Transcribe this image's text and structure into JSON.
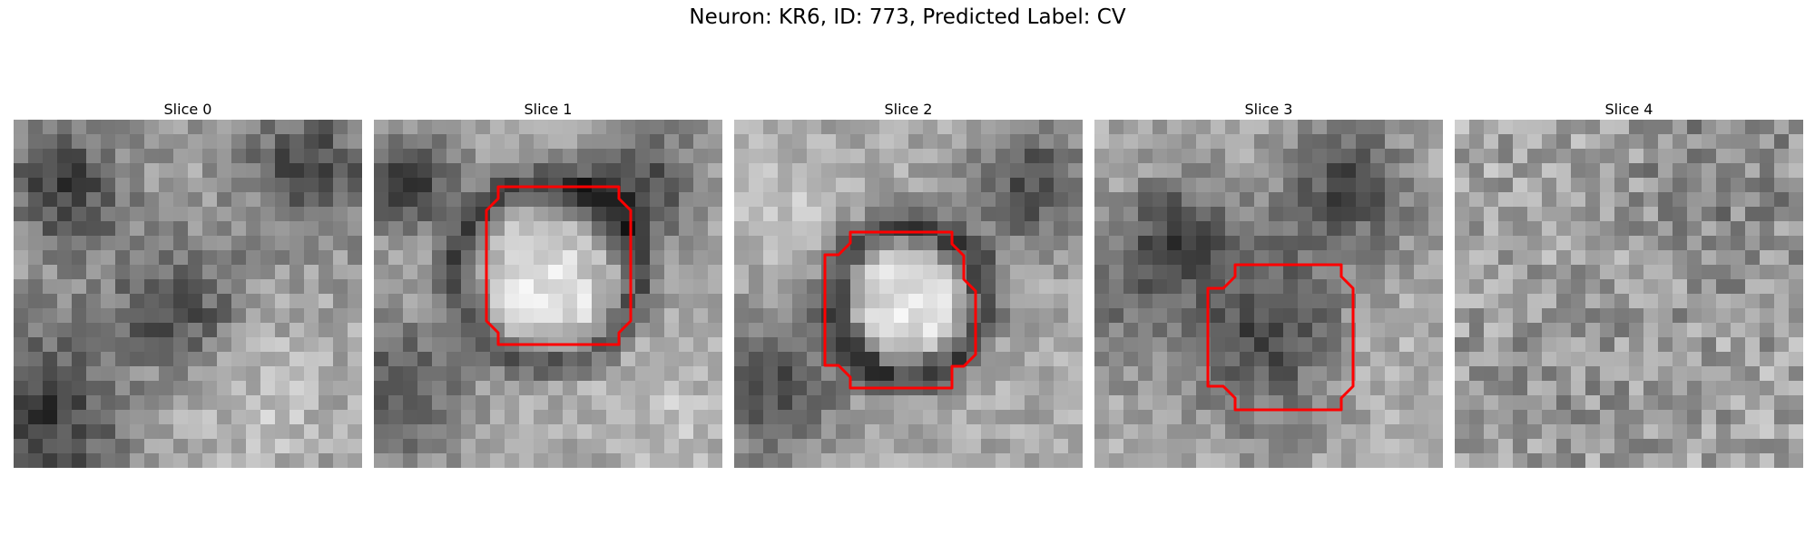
{
  "figure": {
    "title": "Neuron: KR6, ID: 773, Predicted Label: CV"
  },
  "panels": [
    {
      "title": "Slice 0",
      "has_contour": false
    },
    {
      "title": "Slice 1",
      "has_contour": true
    },
    {
      "title": "Slice 2",
      "has_contour": true
    },
    {
      "title": "Slice 3",
      "has_contour": true
    },
    {
      "title": "Slice 4",
      "has_contour": false
    }
  ],
  "colors": {
    "contour": "#ff0000",
    "colormap": "gray"
  }
}
